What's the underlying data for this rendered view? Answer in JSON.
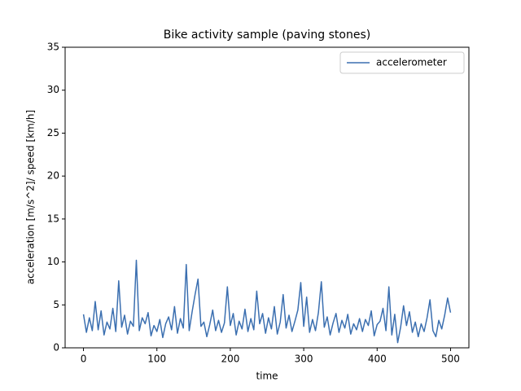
{
  "chart_data": {
    "type": "line",
    "title": "Bike activity sample (paving stones)",
    "xlabel": "time",
    "ylabel": "acceleration [m/s^2]/ speed [km/h]",
    "x": [
      0,
      4,
      8,
      12,
      16,
      20,
      24,
      28,
      32,
      36,
      40,
      44,
      48,
      52,
      56,
      60,
      64,
      68,
      72,
      76,
      80,
      84,
      88,
      92,
      96,
      100,
      104,
      108,
      112,
      116,
      120,
      124,
      128,
      132,
      136,
      140,
      144,
      148,
      152,
      156,
      160,
      164,
      168,
      172,
      176,
      180,
      184,
      188,
      192,
      196,
      200,
      204,
      208,
      212,
      216,
      220,
      224,
      228,
      232,
      236,
      240,
      244,
      248,
      252,
      256,
      260,
      264,
      268,
      272,
      276,
      280,
      284,
      288,
      292,
      296,
      300,
      304,
      308,
      312,
      316,
      320,
      324,
      328,
      332,
      336,
      340,
      344,
      348,
      352,
      356,
      360,
      364,
      368,
      372,
      376,
      380,
      384,
      388,
      392,
      396,
      400,
      404,
      408,
      412,
      416,
      420,
      424,
      428,
      432,
      436,
      440,
      444,
      448,
      452,
      456,
      460,
      464,
      468,
      472,
      476,
      480,
      484,
      488,
      492,
      496,
      500
    ],
    "series": [
      {
        "name": "accelerometer",
        "color": "#3b6fb0",
        "values": [
          3.9,
          1.8,
          3.5,
          2.0,
          5.4,
          2.1,
          4.3,
          1.5,
          3.0,
          2.2,
          4.6,
          1.9,
          7.8,
          2.4,
          3.8,
          1.6,
          3.1,
          2.5,
          10.2,
          2.0,
          3.5,
          2.8,
          4.1,
          1.4,
          2.6,
          1.9,
          3.3,
          1.2,
          2.8,
          3.6,
          2.1,
          4.8,
          1.7,
          3.4,
          2.3,
          9.7,
          2.0,
          4.2,
          6.2,
          8.0,
          2.5,
          3.0,
          1.3,
          2.7,
          4.4,
          2.0,
          3.2,
          1.8,
          2.9,
          7.1,
          2.6,
          4.0,
          1.5,
          3.1,
          2.2,
          4.5,
          1.9,
          3.4,
          2.1,
          6.6,
          2.8,
          4.0,
          1.7,
          3.5,
          2.2,
          4.8,
          1.6,
          3.0,
          6.2,
          2.3,
          3.8,
          1.9,
          3.1,
          4.4,
          7.6,
          2.5,
          5.9,
          1.8,
          3.3,
          2.0,
          4.1,
          7.7,
          2.4,
          3.6,
          1.5,
          2.9,
          4.0,
          1.8,
          3.2,
          2.3,
          3.9,
          1.6,
          2.8,
          2.1,
          3.4,
          1.9,
          3.3,
          2.6,
          4.3,
          1.4,
          2.7,
          3.1,
          4.6,
          2.0,
          7.1,
          1.5,
          3.9,
          0.6,
          2.4,
          4.9,
          2.6,
          4.2,
          1.8,
          3.0,
          1.3,
          2.8,
          1.9,
          3.5,
          5.6,
          2.0,
          1.3,
          3.2,
          2.2,
          3.8,
          5.8,
          4.1
        ]
      }
    ],
    "xlim": [
      -25,
      525
    ],
    "xticks": [
      0,
      100,
      200,
      300,
      400,
      500
    ],
    "ylim": [
      0,
      35
    ],
    "yticks": [
      0,
      5,
      10,
      15,
      20,
      25,
      30,
      35
    ],
    "grid": false,
    "legend": "upper right"
  }
}
